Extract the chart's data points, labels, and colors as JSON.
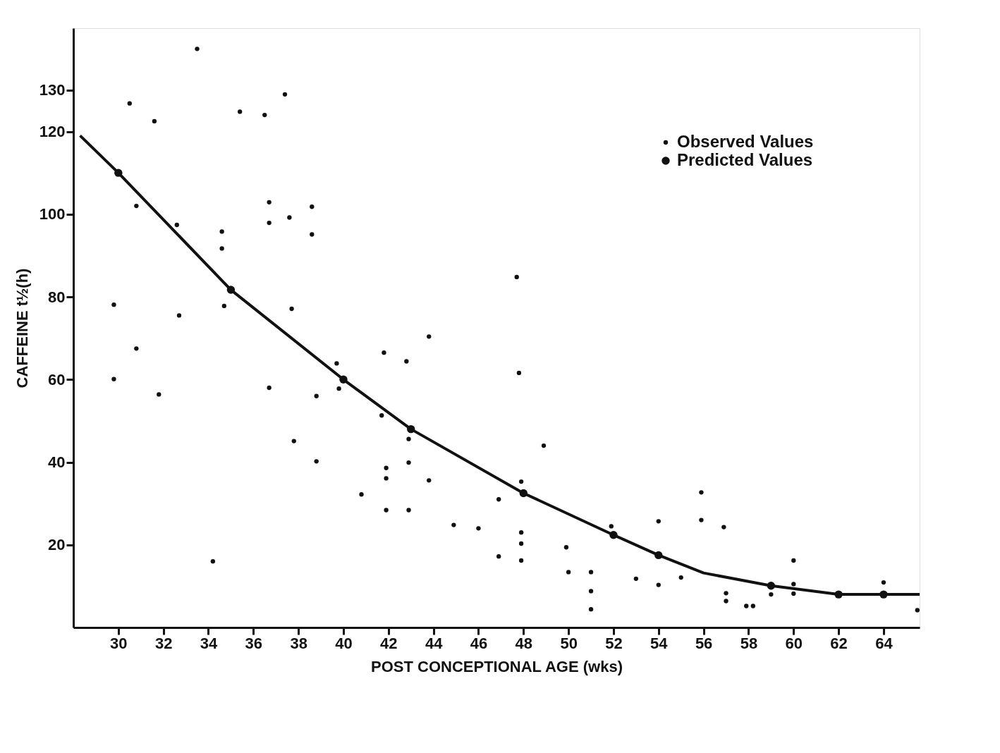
{
  "chart_data": {
    "type": "scatter",
    "xlabel": "POST CONCEPTIONAL AGE (wks)",
    "ylabel": "CAFFEINE t½(h)",
    "xlim": [
      28,
      65.6
    ],
    "ylim": [
      0,
      145
    ],
    "xticks": [
      30,
      32,
      34,
      36,
      38,
      40,
      42,
      44,
      46,
      48,
      50,
      52,
      54,
      56,
      58,
      60,
      62,
      64
    ],
    "yticks": [
      20,
      40,
      60,
      80,
      100,
      120,
      130
    ],
    "grid": false,
    "legend": "top right",
    "marker": "circle",
    "series": [
      {
        "name": "Observed Values",
        "color": "#111111",
        "x": [
          33.5,
          30.5,
          31.6,
          35.4,
          36.5,
          37.4,
          30.8,
          32.6,
          34.6,
          34.6,
          36.7,
          36.7,
          37.6,
          38.6,
          38.6,
          29.8,
          32.7,
          34.7,
          37.7,
          29.8,
          30.8,
          31.8,
          36.7,
          37.8,
          38.8,
          38.8,
          39.7,
          39.8,
          34.2,
          41.8,
          42.8,
          43.8,
          41.7,
          42.9,
          42.9,
          41.9,
          41.9,
          40.8,
          43.8,
          41.9,
          42.9,
          44.9,
          46.0,
          46.9,
          46.9,
          47.7,
          47.8,
          47.9,
          47.9,
          47.9,
          47.9,
          48.9,
          49.9,
          50.0,
          51.0,
          51.0,
          51.0,
          51.9,
          53.0,
          54.0,
          54.0,
          55.0,
          55.9,
          55.9,
          56.9,
          57.0,
          57.0,
          57.9,
          58.2,
          59.0,
          60.0,
          60.0,
          60.0,
          64.0,
          65.5
        ],
        "values": [
          140,
          126.8,
          122.5,
          124.8,
          124,
          129,
          102,
          97.4,
          95.8,
          91.7,
          102.9,
          97.9,
          99.2,
          101.8,
          95.1,
          78.1,
          75.5,
          77.8,
          77.1,
          60.1,
          67.5,
          56.4,
          58,
          45.1,
          40.2,
          56,
          63.9,
          57.8,
          16,
          66.5,
          64.4,
          70.4,
          51.3,
          45.6,
          39.9,
          38.6,
          36.1,
          32.2,
          35.6,
          28.4,
          28.4,
          24.8,
          24,
          31,
          17.2,
          84.8,
          61.6,
          35.3,
          23,
          20.3,
          16.2,
          44,
          19.4,
          13.4,
          13.4,
          8.8,
          4.4,
          24.5,
          11.8,
          25.7,
          10.3,
          12.1,
          32.7,
          26,
          24.3,
          8.3,
          6.4,
          5.2,
          5.2,
          8,
          16.2,
          10.5,
          8.2,
          10.9,
          4.2
        ]
      },
      {
        "name": "Predicted Values",
        "color": "#111111",
        "x": [
          30,
          35,
          40,
          43,
          48,
          52,
          54,
          59,
          62,
          64
        ],
        "values": [
          110,
          81.7,
          60,
          48,
          32.5,
          22.4,
          17.5,
          10.1,
          8,
          8
        ]
      },
      {
        "color": "#111111",
        "type": "line",
        "line_style": "solid",
        "marker": "none",
        "x": [
          28.3,
          30,
          35,
          40,
          43,
          48,
          52,
          54,
          56,
          59,
          62,
          64,
          65.6
        ],
        "values": [
          119,
          110,
          81.7,
          60,
          48,
          32.5,
          22.4,
          17.5,
          13.2,
          10.1,
          8,
          8,
          8
        ]
      }
    ]
  }
}
